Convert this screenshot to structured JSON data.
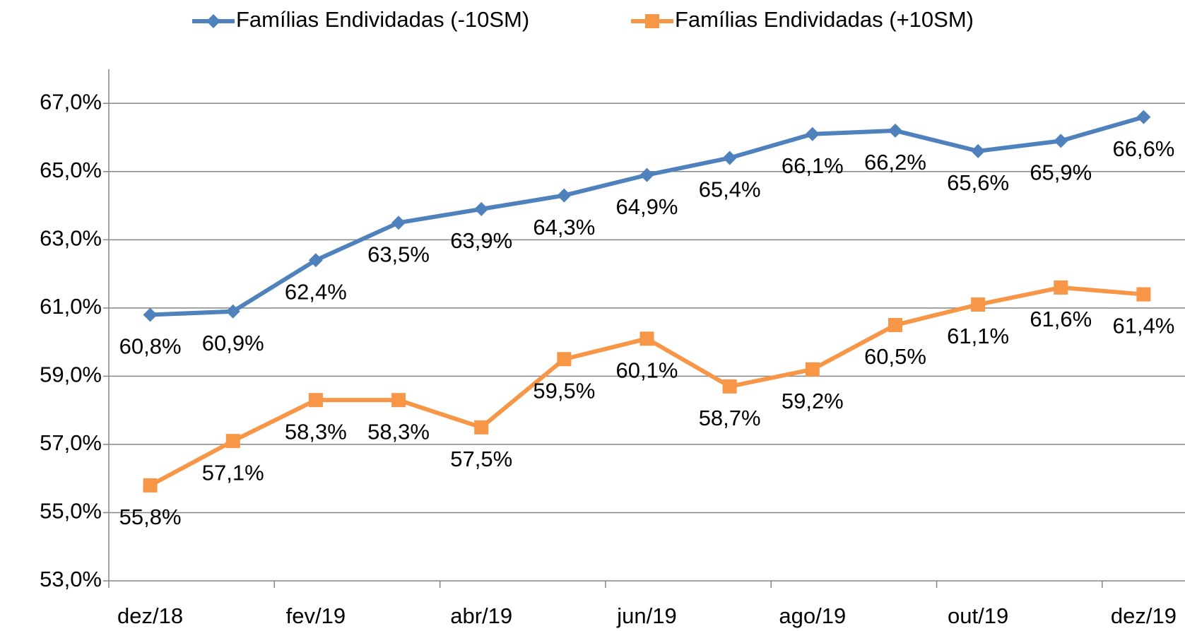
{
  "chart_data": {
    "type": "line",
    "categories": [
      "dez/18",
      null,
      "fev/19",
      null,
      "abr/19",
      null,
      "jun/19",
      null,
      "ago/19",
      null,
      "out/19",
      null,
      "dez/19"
    ],
    "series": [
      {
        "name": "Famílias Endividadas (-10SM)",
        "color": "#4f81bd",
        "marker": "diamond",
        "values": [
          60.8,
          60.9,
          62.4,
          63.5,
          63.9,
          64.3,
          64.9,
          65.4,
          66.1,
          66.2,
          65.6,
          65.9,
          66.6
        ],
        "value_labels": [
          "60,8%",
          "60,9%",
          "62,4%",
          "63,5%",
          "63,9%",
          "64,3%",
          "64,9%",
          "65,4%",
          "66,1%",
          "66,2%",
          "65,6%",
          "65,9%",
          "66,6%"
        ]
      },
      {
        "name": "Famílias Endividadas (+10SM)",
        "color": "#f79646",
        "marker": "square",
        "values": [
          55.8,
          57.1,
          58.3,
          58.3,
          57.5,
          59.5,
          60.1,
          58.7,
          59.2,
          60.5,
          61.1,
          61.6,
          61.4
        ],
        "value_labels": [
          "55,8%",
          "57,1%",
          "58,3%",
          "58,3%",
          "57,5%",
          "59,5%",
          "60,1%",
          "58,7%",
          "59,2%",
          "60,5%",
          "61,1%",
          "61,6%",
          "61,4%"
        ]
      }
    ],
    "ylim": [
      53,
      68
    ],
    "yticks": [
      {
        "value": 53,
        "label": "53,0%"
      },
      {
        "value": 55,
        "label": "55,0%"
      },
      {
        "value": 57,
        "label": "57,0%"
      },
      {
        "value": 59,
        "label": "59,0%"
      },
      {
        "value": 61,
        "label": "61,0%"
      },
      {
        "value": 63,
        "label": "63,0%"
      },
      {
        "value": 65,
        "label": "65,0%"
      },
      {
        "value": 67,
        "label": "67,0%"
      }
    ],
    "grid": true,
    "legend": "top"
  }
}
